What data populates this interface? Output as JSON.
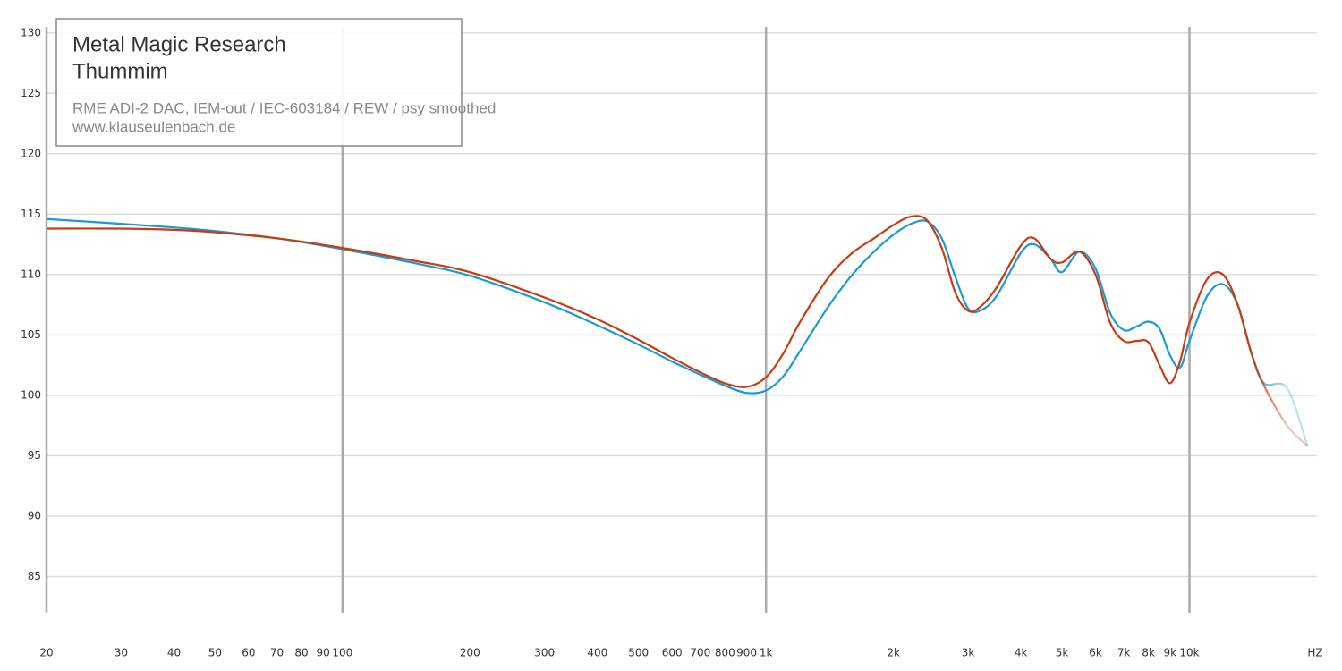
{
  "chart_data": {
    "type": "line",
    "title": "Metal Magic Research",
    "subtitle": "Thummim",
    "notes": [
      "RME ADI-2 DAC, IEM-out / IEC-603184 / REW / psy smoothed",
      "www.klauseulenbach.de"
    ],
    "x_label": "HZ",
    "log_x": true,
    "grid": true,
    "x": [
      20,
      30,
      40,
      50,
      70,
      100,
      150,
      200,
      300,
      400,
      500,
      600,
      700,
      800,
      900,
      1000,
      1100,
      1200,
      1400,
      1600,
      1800,
      2000,
      2200,
      2400,
      2600,
      2800,
      3000,
      3200,
      3500,
      4000,
      4300,
      4700,
      5000,
      5500,
      6000,
      6500,
      7000,
      7500,
      8000,
      8500,
      9000,
      9500,
      10000,
      11000,
      12000,
      13000,
      14000,
      15000,
      17000,
      19000
    ],
    "series": [
      {
        "color": "#1a9bd0",
        "values": [
          114.6,
          114.2,
          113.9,
          113.6,
          113.0,
          112.1,
          110.9,
          109.9,
          107.7,
          105.8,
          104.2,
          102.8,
          101.7,
          100.8,
          100.2,
          100.4,
          101.6,
          103.6,
          107.3,
          110.0,
          111.9,
          113.3,
          114.2,
          114.4,
          113.0,
          109.8,
          107.2,
          107.0,
          108.2,
          111.8,
          112.5,
          111.3,
          110.2,
          111.9,
          110.5,
          106.8,
          105.4,
          105.7,
          106.1,
          105.5,
          103.3,
          102.3,
          104.5,
          108.2,
          109.2,
          107.5,
          103.5,
          101.0,
          100.6,
          95.8
        ]
      },
      {
        "color": "#c83a10",
        "values": [
          113.8,
          113.8,
          113.7,
          113.5,
          113.0,
          112.2,
          111.1,
          110.2,
          108.1,
          106.3,
          104.6,
          103.1,
          101.9,
          101.0,
          100.7,
          101.5,
          103.5,
          106.0,
          109.7,
          111.8,
          113.0,
          114.1,
          114.8,
          114.5,
          112.2,
          108.5,
          107.0,
          107.3,
          108.9,
          112.4,
          113.0,
          111.3,
          111.0,
          111.9,
          110.0,
          106.0,
          104.5,
          104.5,
          104.4,
          102.5,
          101.0,
          102.8,
          106.0,
          109.6,
          110.0,
          107.5,
          103.5,
          100.8,
          97.5,
          95.8
        ]
      }
    ],
    "xlim": [
      20,
      20000
    ],
    "ylim": [
      82,
      130.5
    ],
    "xticks": [
      20,
      30,
      40,
      50,
      60,
      70,
      80,
      90,
      100,
      200,
      300,
      400,
      500,
      600,
      700,
      800,
      900,
      {
        "value": 1000,
        "label": "1k"
      },
      {
        "value": 2000,
        "label": "2k"
      },
      {
        "value": 3000,
        "label": "3k"
      },
      {
        "value": 4000,
        "label": "4k"
      },
      {
        "value": 5000,
        "label": "5k"
      },
      {
        "value": 6000,
        "label": "6k"
      },
      {
        "value": 7000,
        "label": "7k"
      },
      {
        "value": 8000,
        "label": "8k"
      },
      {
        "value": 9000,
        "label": "9k"
      },
      {
        "value": 10000,
        "label": "10k"
      }
    ],
    "yticks": [
      85,
      90,
      95,
      100,
      105,
      110,
      115,
      120,
      125,
      130
    ]
  }
}
